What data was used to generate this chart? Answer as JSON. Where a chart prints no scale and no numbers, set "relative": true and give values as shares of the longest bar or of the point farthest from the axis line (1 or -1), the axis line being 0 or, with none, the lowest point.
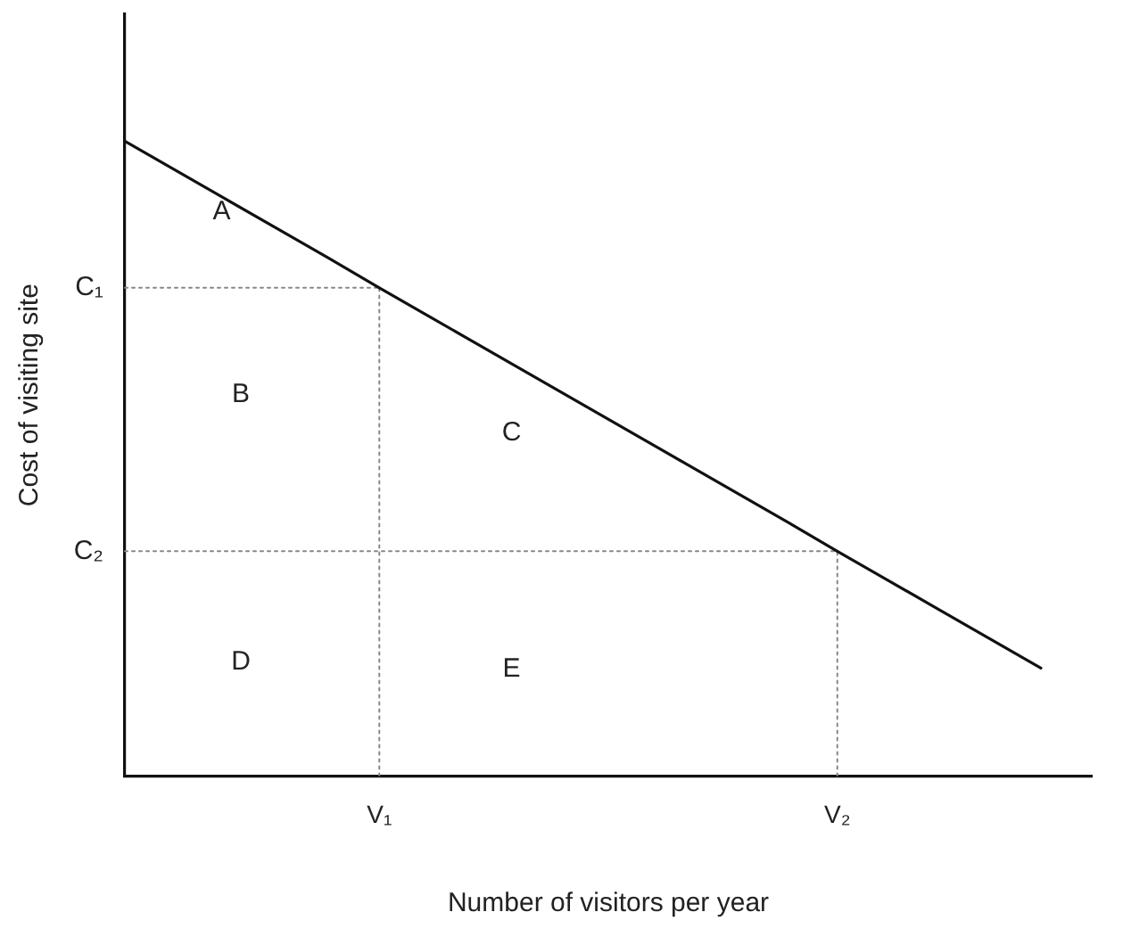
{
  "chart_data": {
    "type": "line",
    "xlabel": "Number of visitors per year",
    "ylabel": "Cost of visiting site",
    "relative": true,
    "categories": [
      null,
      null,
      null,
      null,
      null,
      "V₁",
      null,
      null,
      null,
      null,
      null,
      null,
      null,
      null,
      "V₂",
      null,
      null,
      null,
      null,
      null
    ],
    "grid": false,
    "legend": false,
    "marker": "none",
    "series": [
      {
        "color": "#111111",
        "line_style": "solid",
        "values": [
          1,
          0.954,
          0.908,
          0.862,
          0.816,
          0.769,
          0.723,
          0.677,
          0.631,
          0.585,
          0.539,
          0.493,
          0.447,
          0.401,
          0.354,
          0.308,
          0.262,
          0.216,
          0.17,
          null
        ]
      },
      {
        "name": "C₁",
        "color": "#888888",
        "line_style": "dotted",
        "values": [
          0.769,
          0.769,
          0.769,
          0.769,
          0.769,
          0.769,
          null,
          null,
          null,
          null,
          null,
          null,
          null,
          null,
          null,
          null,
          null,
          null,
          null,
          null
        ]
      },
      {
        "name": "C₂",
        "color": "#888888",
        "line_style": "dotted",
        "values": [
          0.354,
          0.354,
          0.354,
          0.354,
          0.354,
          0.354,
          0.354,
          0.354,
          0.354,
          0.354,
          0.354,
          0.354,
          0.354,
          0.354,
          0.354,
          null,
          null,
          null,
          null,
          null
        ]
      },
      {
        "color": "#888888",
        "line_style": "dotted",
        "x": [
          "V₁",
          "V₁"
        ],
        "values": [
          0,
          0.769
        ]
      },
      {
        "color": "#888888",
        "line_style": "dotted",
        "x": [
          "V₂",
          "V₂"
        ],
        "values": [
          0,
          0.354
        ]
      }
    ],
    "annotations": [
      "A",
      "B",
      "C",
      "D",
      "E"
    ]
  }
}
